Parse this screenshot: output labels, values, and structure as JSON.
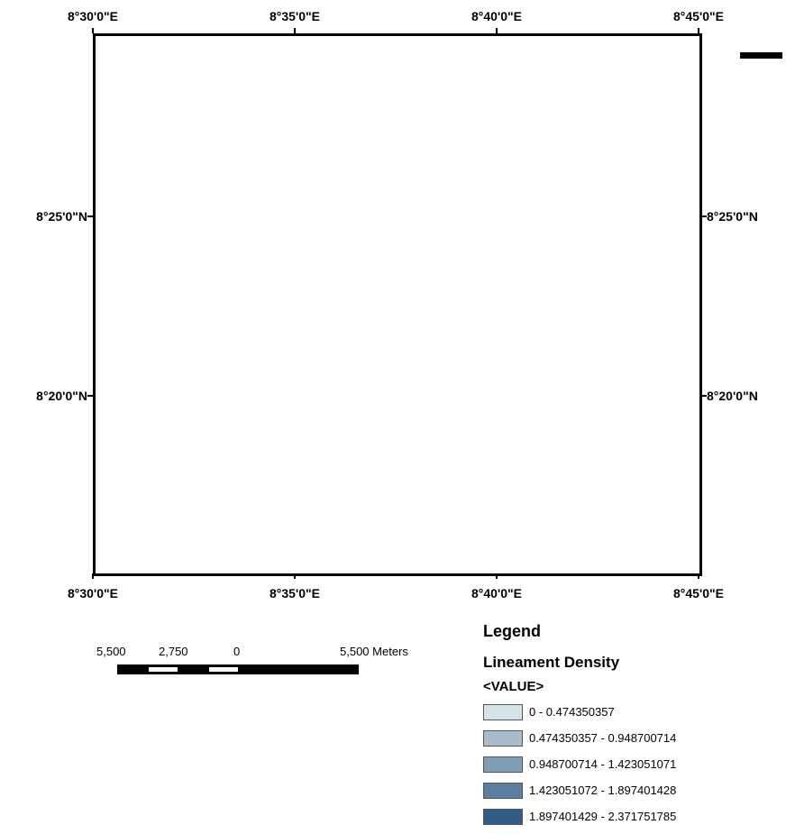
{
  "map": {
    "lon_labels": [
      "8°30'0\"E",
      "8°35'0\"E",
      "8°40'0\"E",
      "8°45'0\"E"
    ],
    "lat_labels": [
      "8°25'0\"N",
      "8°20'0\"N"
    ]
  },
  "scale_bar": {
    "labels": [
      "5,500",
      "2,750",
      "0",
      "5,500 Meters"
    ]
  },
  "legend": {
    "title": "Legend",
    "layer": "Lineament Density",
    "field": "<VALUE>",
    "items": [
      {
        "label": "0 - 0.474350357",
        "color": "#d6e3e7"
      },
      {
        "label": "0.474350357 - 0.948700714",
        "color": "#a9bccb"
      },
      {
        "label": "0.948700714 - 1.423051071",
        "color": "#809fb6"
      },
      {
        "label": "1.423051072 - 1.897401428",
        "color": "#5a7ea0"
      },
      {
        "label": "1.897401429 - 2.371751785",
        "color": "#2f5d85"
      }
    ]
  }
}
